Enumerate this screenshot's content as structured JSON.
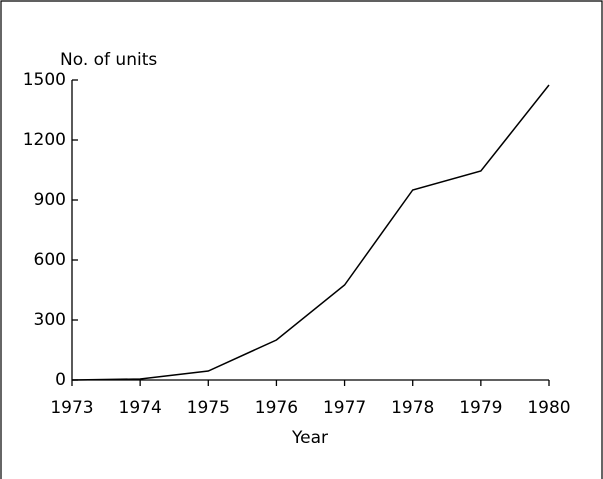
{
  "chart_data": {
    "type": "line",
    "y_label": "No. of units",
    "x_label": "Year",
    "x": [
      1973,
      1974,
      1975,
      1976,
      1977,
      1978,
      1979,
      1980
    ],
    "series": [
      {
        "color": "#000000",
        "values": [
          0,
          5,
          45,
          200,
          475,
          950,
          1045,
          1475
        ]
      }
    ],
    "xlim": [
      1973,
      1980
    ],
    "xticks": [
      1973,
      1974,
      1975,
      1976,
      1977,
      1978,
      1979,
      1980
    ],
    "ylim": [
      0,
      1500
    ],
    "yticks": [
      0,
      300,
      600,
      900,
      1200,
      1500
    ],
    "grid": false
  }
}
